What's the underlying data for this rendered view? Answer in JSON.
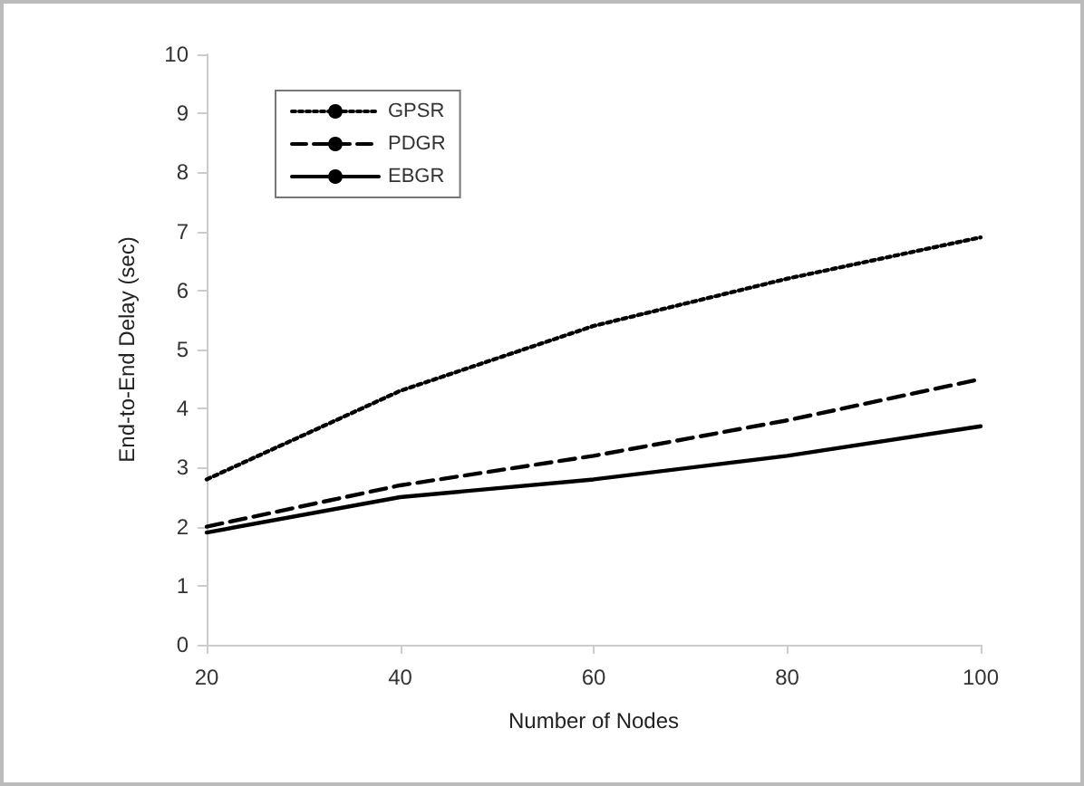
{
  "chart_data": {
    "type": "line",
    "xlabel": "Number of Nodes",
    "ylabel": "End-to-End Delay (sec)",
    "x": [
      20,
      40,
      60,
      80,
      100
    ],
    "series": [
      {
        "name": "GPSR",
        "color": "#000000",
        "line_style": "dotted",
        "values": [
          2.8,
          4.3,
          5.4,
          6.2,
          6.9
        ]
      },
      {
        "name": "PDGR",
        "color": "#000000",
        "line_style": "dashed",
        "values": [
          2.0,
          2.7,
          3.2,
          3.8,
          4.5
        ]
      },
      {
        "name": "EBGR",
        "color": "#000000",
        "line_style": "solid",
        "values": [
          1.9,
          2.5,
          2.8,
          3.2,
          3.7
        ]
      }
    ],
    "xlim": [
      20,
      100
    ],
    "xticks": [
      20,
      40,
      60,
      80,
      100
    ],
    "ylim": [
      0,
      10
    ],
    "yticks": [
      0,
      1,
      2,
      3,
      4,
      5,
      6,
      7,
      8,
      9,
      10
    ],
    "grid": false,
    "legend": "top left",
    "marker": "none"
  }
}
